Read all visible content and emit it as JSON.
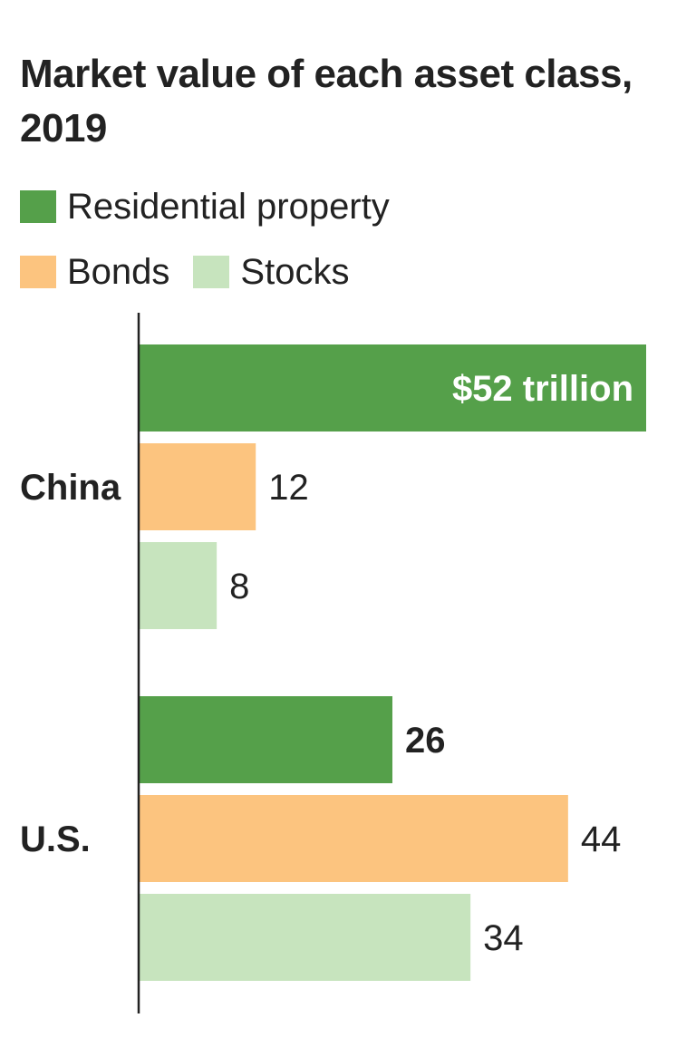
{
  "title": "Market value of each asset class, 2019",
  "chart_data": {
    "type": "bar",
    "orientation": "horizontal",
    "title": "Market value of each asset class, 2019",
    "categories": [
      "China",
      "U.S."
    ],
    "series": [
      {
        "name": "Residential property",
        "color": "#55a04a",
        "values": [
          52,
          26
        ],
        "labels": [
          "$52 trillion",
          "26"
        ]
      },
      {
        "name": "Bonds",
        "color": "#fcc47f",
        "values": [
          12,
          44
        ],
        "labels": [
          "12",
          "44"
        ]
      },
      {
        "name": "Stocks",
        "color": "#c7e4be",
        "values": [
          8,
          34
        ],
        "labels": [
          "8",
          "34"
        ]
      }
    ],
    "xlim": [
      0,
      52
    ],
    "grid": false,
    "legend_position": "top"
  }
}
